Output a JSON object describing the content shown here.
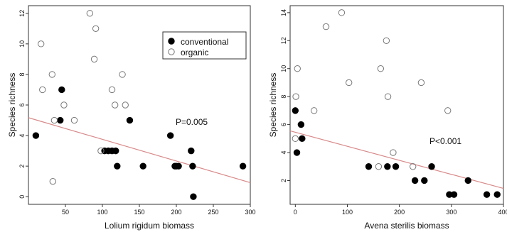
{
  "chart_data": [
    {
      "type": "scatter",
      "xlabel": "Lolium rigidum biomass",
      "ylabel": "Species richness",
      "xlim": [
        0,
        300
      ],
      "ylim": [
        -0.5,
        12.5
      ],
      "xticks": [
        50,
        100,
        150,
        200,
        250,
        300
      ],
      "yticks": [
        0,
        2,
        4,
        6,
        8,
        10,
        12
      ],
      "annotation": "P=0.005",
      "legend": {
        "placement": "top-right",
        "entries": [
          {
            "label": "conventional",
            "style": "filled"
          },
          {
            "label": "organic",
            "style": "open"
          }
        ]
      },
      "series": [
        {
          "style": "filled",
          "points": [
            [
              10,
              4
            ],
            [
              43,
              5
            ],
            [
              45,
              7
            ],
            [
              103,
              3
            ],
            [
              108,
              3
            ],
            [
              113,
              3
            ],
            [
              118,
              3
            ],
            [
              120,
              2
            ],
            [
              137,
              5
            ],
            [
              155,
              2
            ],
            [
              192,
              4
            ],
            [
              198,
              2
            ],
            [
              200,
              2
            ],
            [
              203,
              2
            ],
            [
              220,
              3
            ],
            [
              222,
              2
            ],
            [
              223,
              0
            ],
            [
              290,
              2
            ]
          ]
        },
        {
          "style": "open",
          "points": [
            [
              17,
              10
            ],
            [
              19,
              7
            ],
            [
              32,
              8
            ],
            [
              33,
              1
            ],
            [
              35,
              5
            ],
            [
              48,
              6
            ],
            [
              62,
              5
            ],
            [
              83,
              12
            ],
            [
              89,
              9
            ],
            [
              91,
              11
            ],
            [
              98,
              3
            ],
            [
              113,
              7
            ],
            [
              117,
              6
            ],
            [
              127,
              8
            ],
            [
              131,
              6
            ]
          ]
        }
      ],
      "trend_line": {
        "x": [
          0,
          300
        ],
        "y": [
          5.17,
          0.92
        ],
        "color": "#d98a8a"
      }
    },
    {
      "type": "scatter",
      "xlabel": "Avena sterilis biomass",
      "ylabel": "Species richness",
      "xlim": [
        -10,
        400
      ],
      "ylim": [
        0.3,
        14.5
      ],
      "xticks": [
        0,
        100,
        200,
        300,
        400
      ],
      "yticks": [
        2,
        4,
        6,
        8,
        10,
        12,
        14
      ],
      "annotation": "P<0.001",
      "series": [
        {
          "style": "filled",
          "points": [
            [
              0,
              7
            ],
            [
              3,
              4
            ],
            [
              11,
              6
            ],
            [
              13,
              5
            ],
            [
              141,
              3
            ],
            [
              177,
              3
            ],
            [
              193,
              3
            ],
            [
              230,
              2
            ],
            [
              248,
              2
            ],
            [
              262,
              3
            ],
            [
              296,
              1
            ],
            [
              305,
              1
            ],
            [
              332,
              2
            ],
            [
              368,
              1
            ],
            [
              388,
              1
            ]
          ]
        },
        {
          "style": "open",
          "points": [
            [
              0,
              5
            ],
            [
              1,
              8
            ],
            [
              4,
              10
            ],
            [
              36,
              7
            ],
            [
              59,
              13
            ],
            [
              89,
              14
            ],
            [
              103,
              9
            ],
            [
              160,
              3
            ],
            [
              164,
              10
            ],
            [
              175,
              12
            ],
            [
              178,
              8
            ],
            [
              188,
              4
            ],
            [
              226,
              3
            ],
            [
              242,
              9
            ],
            [
              293,
              7
            ]
          ]
        }
      ],
      "trend_line": {
        "x": [
          -10,
          400
        ],
        "y": [
          5.55,
          1.44
        ],
        "color": "#d98a8a"
      }
    }
  ]
}
